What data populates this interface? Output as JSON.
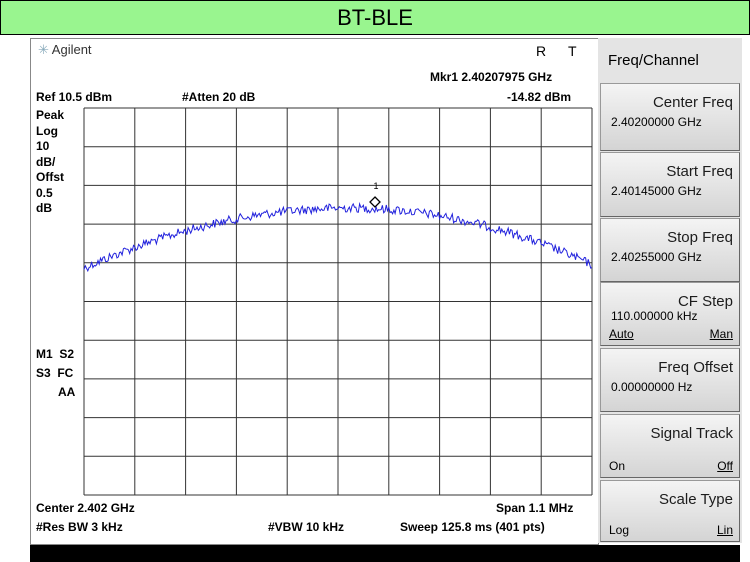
{
  "header": {
    "title": "BT-BLE"
  },
  "status": {
    "brand": "Agilent",
    "indicator_r": "R",
    "indicator_t": "T",
    "marker": "Mkr1 2.40207975 GHz",
    "ref": "Ref 10.5 dBm",
    "atten": "#Atten 20 dB",
    "marker_level": "-14.82 dBm"
  },
  "left_labels": [
    "Peak",
    "Log",
    "10",
    "dB/",
    "Offst",
    "0.5",
    "dB"
  ],
  "left_labels_lower": [
    "M1  S2",
    "S3  FC",
    "AA"
  ],
  "marker_label": "1",
  "footer": {
    "center": "Center 2.402 GHz",
    "span": "Span 1.1 MHz",
    "res_bw": "#Res BW 3 kHz",
    "vbw": "#VBW 10 kHz",
    "sweep": "Sweep 125.8 ms (401 pts)"
  },
  "softkeys": {
    "menu": "Freq/Channel",
    "keys": [
      {
        "label": "Center Freq",
        "value": "2.40200000 GHz"
      },
      {
        "label": "Start Freq",
        "value": "2.40145000 GHz"
      },
      {
        "label": "Stop Freq",
        "value": "2.40255000 GHz"
      },
      {
        "label": "CF Step",
        "value": "110.000000 kHz",
        "left": "Auto",
        "right": "Man"
      },
      {
        "label": "Freq Offset",
        "value": "0.00000000  Hz"
      },
      {
        "label": "Signal Track",
        "left": "On",
        "right": "Off"
      },
      {
        "label": "Scale Type",
        "left": "Log",
        "right": "Lin"
      }
    ]
  }
}
